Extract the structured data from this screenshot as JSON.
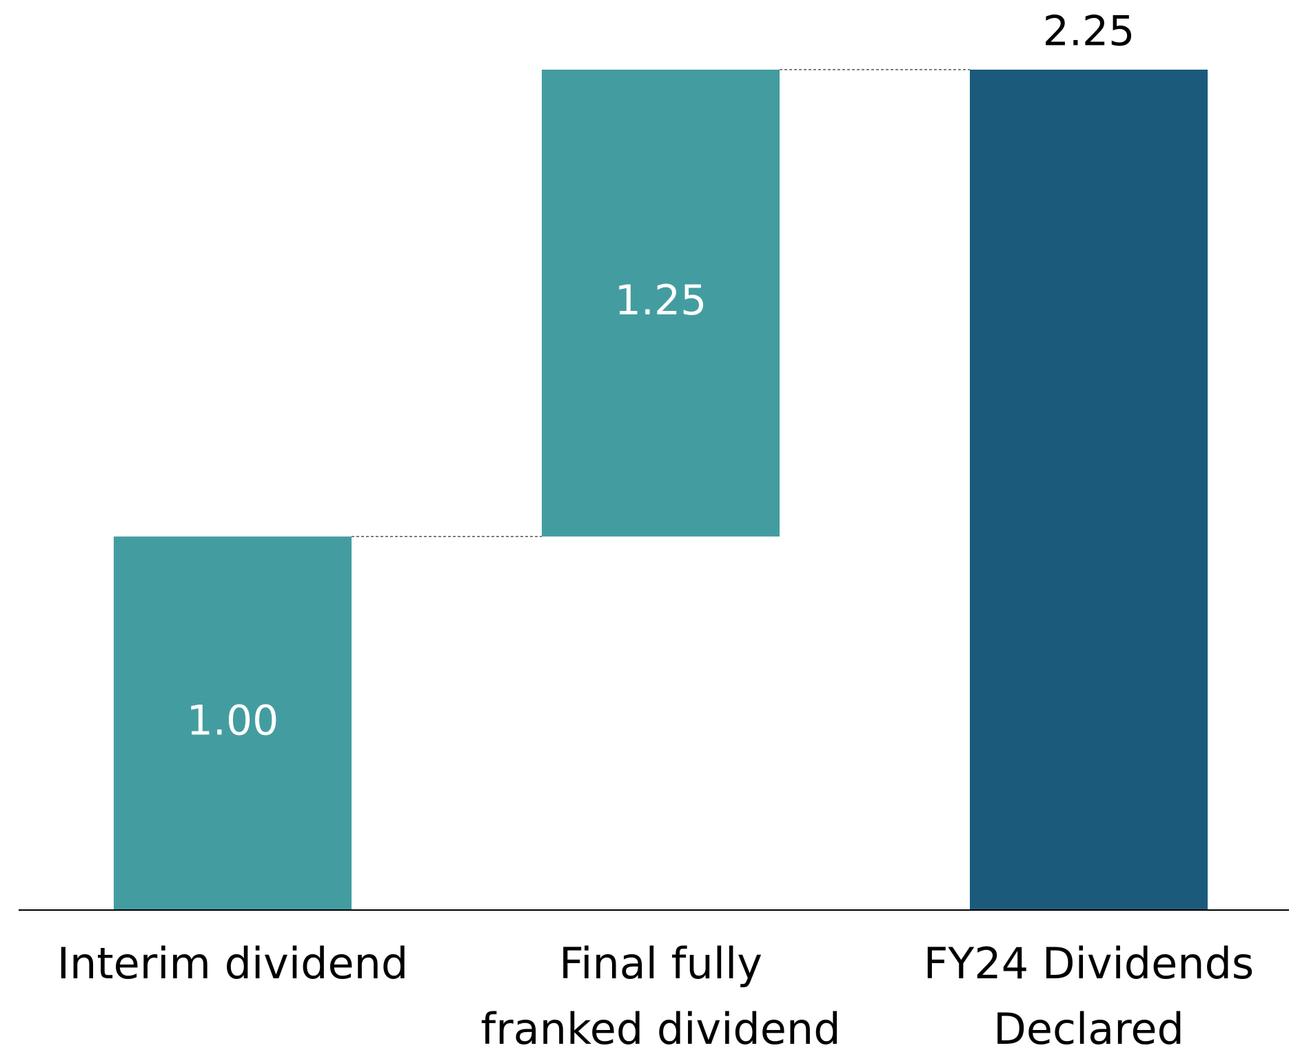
{
  "chart_data": {
    "type": "waterfall",
    "categories": [
      "Interim dividend",
      "Final fully\nfranked dividend",
      "FY24 Dividends\nDeclared"
    ],
    "measures": [
      "relative",
      "relative",
      "total"
    ],
    "values": [
      1.0,
      1.25,
      2.25
    ],
    "value_labels": [
      "1.00",
      "1.25",
      "2.25"
    ],
    "colors": [
      "#439da0",
      "#439da0",
      "#1c5a7c"
    ]
  }
}
